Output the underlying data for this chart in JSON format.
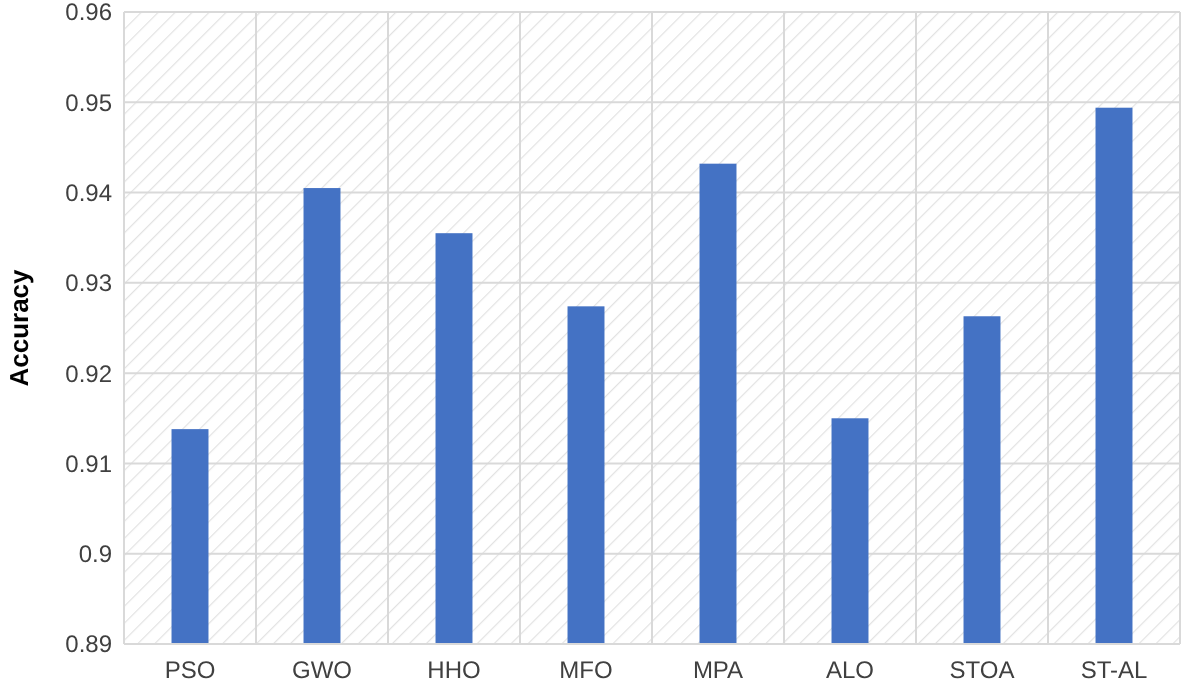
{
  "chart_data": {
    "type": "bar",
    "ylabel": "Accuracy",
    "categories": [
      "PSO",
      "GWO",
      "HHO",
      "MFO",
      "MPA",
      "ALO",
      "STOA",
      "ST-AL"
    ],
    "values": [
      0.9138,
      0.9405,
      0.9355,
      0.9274,
      0.9432,
      0.915,
      0.9263,
      0.9494
    ],
    "color": "#4472c4",
    "ylim": [
      0.89,
      0.96
    ],
    "yticks": [
      0.89,
      {
        "value": 0.9,
        "label": "0.9"
      },
      0.91,
      0.92,
      0.93,
      0.94,
      0.95,
      0.96
    ],
    "grid": true
  }
}
